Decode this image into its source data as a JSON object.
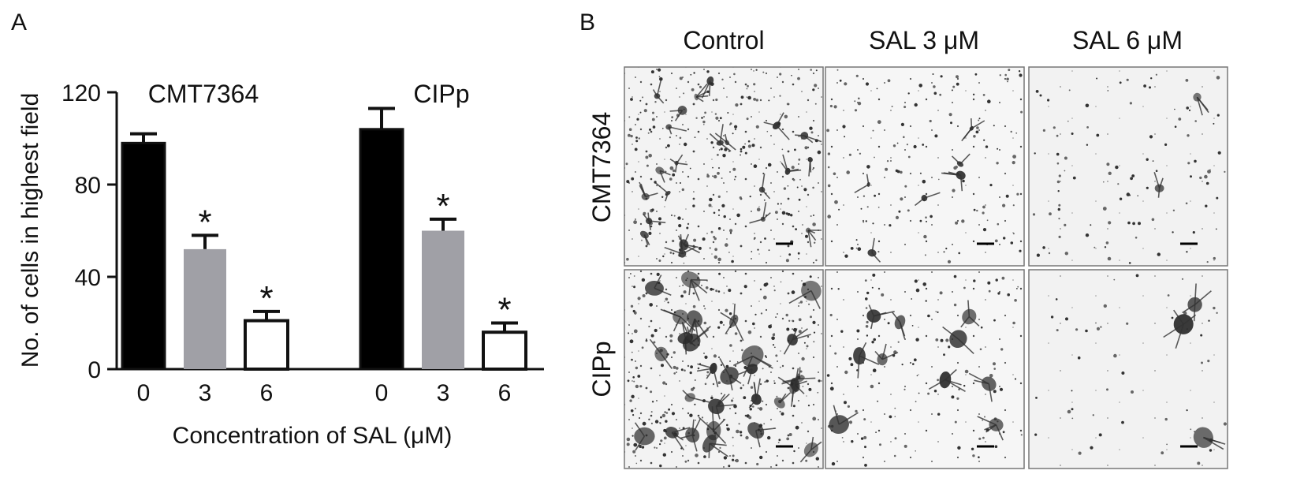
{
  "panels": {
    "a": "A",
    "b": "B"
  },
  "chart_data": {
    "type": "bar",
    "title": "",
    "xlabel": "Concentration of SAL (μM)",
    "ylabel": "No. of cells in highest field",
    "ylim": [
      0,
      120
    ],
    "yticks": [
      "0",
      "40",
      "80",
      "120"
    ],
    "categories": [
      "0",
      "3",
      "6"
    ],
    "groups": [
      {
        "name": "CMT7364",
        "values": [
          98,
          52,
          21
        ],
        "errors": [
          4,
          6,
          4
        ],
        "significant": [
          false,
          true,
          true
        ]
      },
      {
        "name": "CIPp",
        "values": [
          104,
          60,
          16
        ],
        "errors": [
          9,
          5,
          4
        ],
        "significant": [
          false,
          true,
          true
        ]
      }
    ],
    "bar_colors": [
      "#000000",
      "#a0a0a6",
      "#ffffff"
    ],
    "significance_marker": "*",
    "grid": false
  },
  "micrographs": {
    "columns": [
      "Control",
      "SAL 3 μM",
      "SAL 6 μM"
    ],
    "rows": [
      "CMT7364",
      "CIPp"
    ],
    "density": [
      [
        0.55,
        0.35,
        0.25
      ],
      [
        0.6,
        0.3,
        0.12
      ]
    ],
    "large_cells": [
      [
        22,
        6,
        2
      ],
      [
        28,
        10,
        3
      ]
    ]
  }
}
